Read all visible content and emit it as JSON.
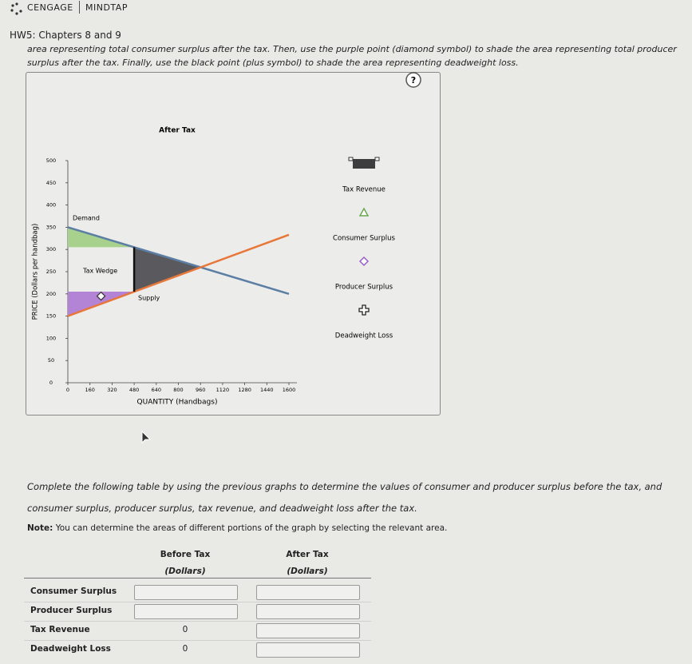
{
  "header": {
    "brand": "CENGAGE",
    "product": "MINDTAP"
  },
  "assignment_title": "HW5: Chapters 8 and 9",
  "instructions": [
    "area representing total consumer surplus after the tax. Then, use the purple point (diamond symbol) to shade the area representing total producer",
    "surplus after the tax. Finally, use the black point (plus symbol) to shade the area representing deadweight loss."
  ],
  "help_button": "?",
  "chart_data": {
    "type": "line",
    "title": "After Tax",
    "x_label": "QUANTITY (Handbags)",
    "y_label": "PRICE (Dollars per handbag)",
    "xlim": [
      0,
      1600
    ],
    "ylim": [
      0,
      500
    ],
    "xticks": [
      0,
      160,
      320,
      480,
      640,
      800,
      960,
      1120,
      1280,
      1440,
      1600
    ],
    "yticks": [
      0,
      50,
      100,
      150,
      200,
      250,
      300,
      350,
      400,
      450,
      500
    ],
    "series": [
      {
        "name": "Demand",
        "color": "#5b7ea4",
        "x": [
          0,
          1600
        ],
        "values": [
          350,
          200
        ]
      },
      {
        "name": "Supply",
        "color": "#e8773a",
        "x": [
          0,
          1600
        ],
        "values": [
          150,
          333
        ]
      }
    ],
    "areas": [
      {
        "color": "#a9d18e",
        "x": [
          0,
          480,
          0
        ],
        "values": [
          350,
          305,
          305
        ]
      },
      {
        "color": "#5a5a5e",
        "x": [
          480,
          960,
          480
        ],
        "values": [
          305,
          260,
          205
        ]
      },
      {
        "color": "#b383d6",
        "x": [
          0,
          480,
          0
        ],
        "values": [
          150,
          205,
          205
        ]
      }
    ],
    "tax_wedge": {
      "label": "Tax Wedge",
      "x": 480,
      "values": [
        205,
        305
      ],
      "color": "#111111"
    },
    "point": {
      "x": 240,
      "y": 195
    },
    "legend": [
      {
        "name": "Tax Revenue",
        "symbol": "rect",
        "color": "#3d3d40"
      },
      {
        "name": "Consumer Surplus",
        "symbol": "triangle",
        "color": "#6aa84f"
      },
      {
        "name": "Producer Surplus",
        "symbol": "diamond",
        "color": "#9b5fc9"
      },
      {
        "name": "Deadweight Loss",
        "symbol": "plus",
        "color": "#222222"
      }
    ]
  },
  "table_intro": "Complete the following table by using the previous graphs to determine the values of consumer and producer surplus before the tax, and consumer surplus, producer surplus, tax revenue, and deadweight loss after the tax.",
  "note": {
    "label": "Note:",
    "text": "You can determine the areas of different portions of the graph by selecting the relevant area."
  },
  "table": {
    "columns": [
      {
        "title": "Before Tax",
        "unit": "(Dollars)"
      },
      {
        "title": "After Tax",
        "unit": "(Dollars)"
      }
    ],
    "rows": [
      {
        "label": "Consumer Surplus"
      },
      {
        "label": "Producer Surplus"
      },
      {
        "label": "Tax Revenue",
        "before": 0
      },
      {
        "label": "Deadweight Loss",
        "before": 0
      }
    ]
  }
}
